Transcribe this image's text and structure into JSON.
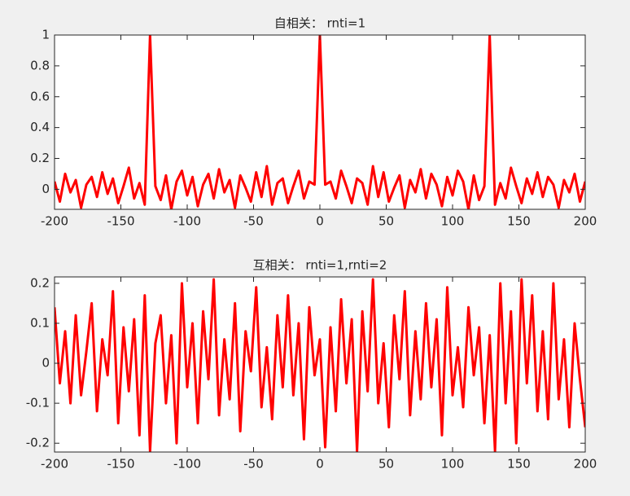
{
  "chart_data": [
    {
      "type": "line",
      "title": "自相关： rnti=1",
      "color": "#ff0000",
      "x": [
        -200,
        -196,
        -192,
        -188,
        -184,
        -180,
        -176,
        -172,
        -168,
        -164,
        -160,
        -156,
        -152,
        -148,
        -144,
        -140,
        -136,
        -132,
        -128,
        -124,
        -120,
        -116,
        -112,
        -108,
        -104,
        -100,
        -96,
        -92,
        -88,
        -84,
        -80,
        -76,
        -72,
        -68,
        -64,
        -60,
        -56,
        -52,
        -48,
        -44,
        -40,
        -36,
        -32,
        -28,
        -24,
        -20,
        -16,
        -12,
        -8,
        -4,
        0,
        4,
        8,
        12,
        16,
        20,
        24,
        28,
        32,
        36,
        40,
        44,
        48,
        52,
        56,
        60,
        64,
        68,
        72,
        76,
        80,
        84,
        88,
        92,
        96,
        100,
        104,
        108,
        112,
        116,
        120,
        124,
        128,
        132,
        136,
        140,
        144,
        148,
        152,
        156,
        160,
        164,
        168,
        172,
        176,
        180,
        184,
        188,
        192,
        196,
        200
      ],
      "values": [
        0.05,
        -0.08,
        0.1,
        -0.02,
        0.06,
        -0.12,
        0.03,
        0.08,
        -0.05,
        0.11,
        -0.03,
        0.07,
        -0.09,
        0.02,
        0.14,
        -0.06,
        0.04,
        -0.1,
        1,
        0.02,
        -0.07,
        0.09,
        -0.13,
        0.05,
        0.12,
        -0.04,
        0.08,
        -0.11,
        0.03,
        0.1,
        -0.06,
        0.13,
        -0.02,
        0.06,
        -0.12,
        0.09,
        0.01,
        -0.08,
        0.11,
        -0.05,
        0.15,
        -0.1,
        0.04,
        0.07,
        -0.09,
        0.02,
        0.12,
        -0.06,
        0.05,
        0.03,
        1,
        0.03,
        0.05,
        -0.06,
        0.12,
        0.02,
        -0.09,
        0.07,
        0.04,
        -0.1,
        0.15,
        -0.05,
        0.11,
        -0.08,
        0.01,
        0.09,
        -0.12,
        0.06,
        -0.02,
        0.13,
        -0.06,
        0.1,
        0.03,
        -0.11,
        0.08,
        -0.04,
        0.12,
        0.05,
        -0.13,
        0.09,
        -0.07,
        0.02,
        1,
        -0.1,
        0.04,
        -0.06,
        0.14,
        0.02,
        -0.09,
        0.07,
        -0.03,
        0.11,
        -0.05,
        0.08,
        0.03,
        -0.12,
        0.06,
        -0.02,
        0.1,
        -0.08,
        0.05
      ],
      "xlim": [
        -200,
        200
      ],
      "xticks": [
        -200,
        -150,
        -100,
        -50,
        0,
        50,
        100,
        150,
        200
      ],
      "ylim": [
        -0.13,
        1
      ],
      "yticks": [
        0,
        0.2,
        0.4,
        0.6,
        0.8,
        1
      ]
    },
    {
      "type": "line",
      "title": "互相关： rnti=1,rnti=2",
      "color": "#ff0000",
      "x": [
        -200,
        -196,
        -192,
        -188,
        -184,
        -180,
        -176,
        -172,
        -168,
        -164,
        -160,
        -156,
        -152,
        -148,
        -144,
        -140,
        -136,
        -132,
        -128,
        -124,
        -120,
        -116,
        -112,
        -108,
        -104,
        -100,
        -96,
        -92,
        -88,
        -84,
        -80,
        -76,
        -72,
        -68,
        -64,
        -60,
        -56,
        -52,
        -48,
        -44,
        -40,
        -36,
        -32,
        -28,
        -24,
        -20,
        -16,
        -12,
        -8,
        -4,
        0,
        4,
        8,
        12,
        16,
        20,
        24,
        28,
        32,
        36,
        40,
        44,
        48,
        52,
        56,
        60,
        64,
        68,
        72,
        76,
        80,
        84,
        88,
        92,
        96,
        100,
        104,
        108,
        112,
        116,
        120,
        124,
        128,
        132,
        136,
        140,
        144,
        148,
        152,
        156,
        160,
        164,
        168,
        172,
        176,
        180,
        184,
        188,
        192,
        196,
        200
      ],
      "values": [
        0.14,
        -0.05,
        0.08,
        -0.1,
        0.12,
        -0.08,
        0.03,
        0.15,
        -0.12,
        0.06,
        -0.03,
        0.18,
        -0.15,
        0.09,
        -0.07,
        0.11,
        -0.18,
        0.17,
        -0.22,
        0.05,
        0.12,
        -0.1,
        0.07,
        -0.2,
        0.2,
        -0.06,
        0.1,
        -0.15,
        0.13,
        -0.04,
        0.21,
        -0.13,
        0.06,
        -0.09,
        0.15,
        -0.17,
        0.08,
        -0.02,
        0.19,
        -0.11,
        0.04,
        -0.14,
        0.12,
        -0.06,
        0.17,
        -0.08,
        0.1,
        -0.19,
        0.14,
        -0.03,
        0.06,
        -0.21,
        0.09,
        -0.12,
        0.16,
        -0.05,
        0.11,
        -0.22,
        0.13,
        -0.07,
        0.21,
        -0.1,
        0.05,
        -0.16,
        0.12,
        -0.04,
        0.18,
        -0.13,
        0.08,
        -0.09,
        0.15,
        -0.06,
        0.11,
        -0.18,
        0.19,
        -0.08,
        0.04,
        -0.11,
        0.14,
        -0.03,
        0.09,
        -0.15,
        0.07,
        -0.22,
        0.2,
        -0.1,
        0.13,
        -0.2,
        0.21,
        -0.05,
        0.17,
        -0.12,
        0.08,
        -0.14,
        0.2,
        -0.09,
        0.06,
        -0.16,
        0.1,
        -0.04,
        -0.16
      ],
      "xlim": [
        -200,
        200
      ],
      "xticks": [
        -200,
        -150,
        -100,
        -50,
        0,
        50,
        100,
        150,
        200
      ],
      "ylim": [
        -0.222,
        0.216
      ],
      "yticks": [
        -0.2,
        -0.1,
        0,
        0.1,
        0.2
      ]
    }
  ]
}
